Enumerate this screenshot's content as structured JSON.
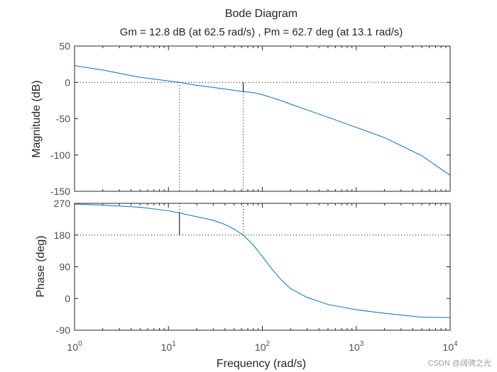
{
  "chart_data": {
    "type": "line",
    "title": "Bode Diagram",
    "subtitle": "Gm = 12.8 dB (at 62.5 rad/s) ,  Pm = 62.7 deg (at 13.1 rad/s)",
    "xlabel": "Frequency  (rad/s)",
    "xscale": "log",
    "xlim": [
      1,
      10000
    ],
    "x_tick_labels": [
      {
        "base": "10",
        "exp": "0"
      },
      {
        "base": "10",
        "exp": "1"
      },
      {
        "base": "10",
        "exp": "2"
      },
      {
        "base": "10",
        "exp": "3"
      },
      {
        "base": "10",
        "exp": "4"
      }
    ],
    "magnitude": {
      "ylabel": "Magnitude (dB)",
      "ylim": [
        -150,
        50
      ],
      "yticks": [
        "50",
        "0",
        "-50",
        "-100",
        "-150"
      ],
      "series": {
        "name": "Magnitude",
        "color": "#0072BD",
        "x": [
          1,
          2,
          5,
          10,
          13.1,
          20,
          30,
          50,
          62.5,
          80,
          100,
          150,
          200,
          300,
          500,
          1000,
          2000,
          5000,
          10000
        ],
        "y": [
          23,
          17,
          7,
          2,
          0,
          -4,
          -7,
          -11,
          -12.8,
          -14,
          -17,
          -24,
          -30,
          -38,
          -48,
          -62,
          -76,
          -101,
          -128
        ]
      },
      "crossover_line_color": "#000000",
      "reference_line_color": "#000000"
    },
    "phase": {
      "ylabel": "Phase (deg)",
      "ylim": [
        -90,
        270
      ],
      "yticks": [
        "270",
        "180",
        "90",
        "0",
        "-90"
      ],
      "series": {
        "name": "Phase",
        "color": "#0072BD",
        "x": [
          1,
          2,
          5,
          10,
          13.1,
          20,
          30,
          40,
          50,
          62.5,
          80,
          100,
          130,
          160,
          200,
          300,
          500,
          1000,
          2000,
          5000,
          10000
        ],
        "y": [
          268,
          265,
          259,
          249,
          242.7,
          232,
          222,
          210,
          197,
          180,
          152,
          119,
          80,
          52,
          28,
          3,
          -17,
          -32,
          -42,
          -53,
          -54
        ]
      }
    },
    "margins": {
      "gain_margin_db": 12.8,
      "gain_crossover_freq": 62.5,
      "phase_margin_deg": 62.7,
      "phase_crossover_freq": 13.1
    }
  },
  "watermark": "CSDN @阔骋之光"
}
